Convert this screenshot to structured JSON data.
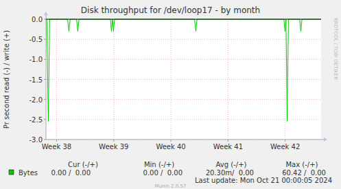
{
  "chart_data": {
    "type": "line",
    "title": "Disk throughput for /dev/loop17 - by month",
    "y_label": "Pr second read (-) / write (+)",
    "x": [
      258.7,
      258.8,
      258.99,
      259.15,
      261.35,
      261.51,
      261.67,
      262.45,
      262.6,
      262.75,
      266.6,
      266.72,
      266.84,
      266.97,
      267.1,
      276.9,
      277.06,
      277.2,
      287.85,
      287.98,
      288.1,
      288.24,
      288.4,
      289.78,
      289.92,
      290.06,
      292.4
    ],
    "series": [
      {
        "name": "Bytes",
        "color": "#00cc00",
        "values": [
          0,
          0,
          -2.55,
          0,
          0,
          -0.3,
          0,
          0,
          -0.3,
          0,
          0,
          -0.3,
          0,
          -0.3,
          0,
          0,
          -0.3,
          0,
          0,
          -0.3,
          0,
          -2.55,
          0,
          0,
          -0.3,
          0,
          0
        ]
      }
    ],
    "xlim": [
      258.7,
      292.4
    ],
    "xticks": [
      {
        "value": 260,
        "label": "Week 38"
      },
      {
        "value": 267,
        "label": "Week 39"
      },
      {
        "value": 274,
        "label": "Week 40"
      },
      {
        "value": 281,
        "label": "Week 41"
      },
      {
        "value": 288,
        "label": "Week 42"
      }
    ],
    "ylim": [
      -3,
      0
    ],
    "yticks": [
      {
        "value": 0,
        "label": "0.0"
      },
      -0.5,
      {
        "value": -1,
        "label": "-1.0"
      },
      -1.5,
      {
        "value": -2,
        "label": "-2.0"
      },
      -2.5,
      {
        "value": -3,
        "label": "-3.0"
      }
    ],
    "grid": true,
    "summary": {
      "headers": [
        "Cur (-/+)",
        "Min (-/+)",
        "Avg (-/+)",
        "Max (-/+)"
      ],
      "rows": [
        {
          "name": "Bytes",
          "cells": [
            "0.00 /  0.00",
            "0.00 /  0.00",
            "20.30m/  0.00",
            "60.42 /  0.00"
          ]
        }
      ]
    },
    "last_update": "Last update: Mon Oct 21 00:00:05 2024",
    "footer": "Munin 2.0.57",
    "watermark": "RRDTOOL / TOBI OETIKER"
  }
}
